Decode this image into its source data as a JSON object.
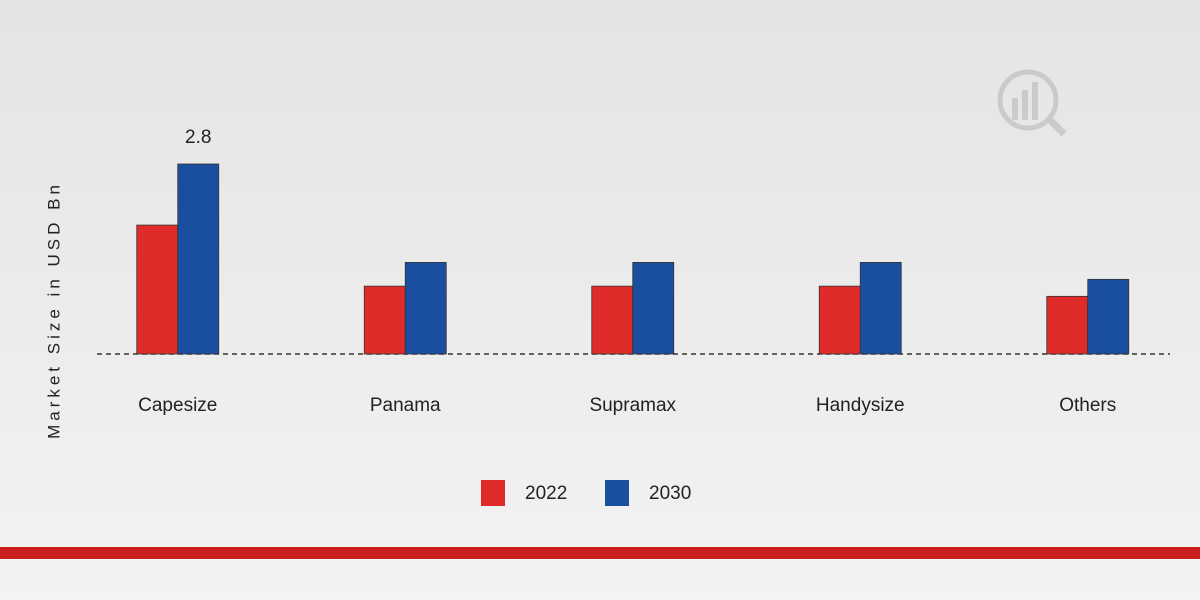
{
  "chart_data": {
    "type": "bar",
    "y_label": "Market Size in USD Bn",
    "categories": [
      "Capesize",
      "Panama",
      "Supramax",
      "Handysize",
      "Others"
    ],
    "series": [
      {
        "name": "2022",
        "color": "#e02b2b",
        "values": [
          1.9,
          1.0,
          1.0,
          1.0,
          0.85
        ]
      },
      {
        "name": "2030",
        "color": "#1a4e9e",
        "values": [
          2.8,
          1.35,
          1.35,
          1.35,
          1.1
        ],
        "value_labels": [
          "2.8",
          null,
          null,
          null,
          null
        ]
      }
    ]
  }
}
